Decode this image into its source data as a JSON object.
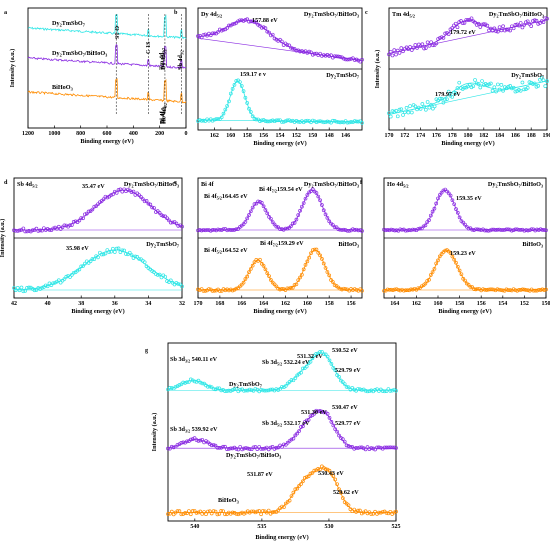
{
  "chart_data": [
    {
      "id": "a",
      "type": "line",
      "panel_label": "a",
      "xlabel": "Binding energy (eV)",
      "ylabel": "Intensity (a.u.)",
      "xlim": [
        1200,
        0
      ],
      "reversed": true,
      "xticks": [
        1200,
        1000,
        800,
        600,
        400,
        200,
        0
      ],
      "annotations": [
        "O 1S",
        "C 1S",
        "Tm 4d5/2",
        "Dy 4d5/2",
        "Sb 4d5/2",
        "Bi 4f7/2",
        "Bi 4f5/2",
        "Ho 4d5/2"
      ],
      "series": [
        {
          "name": "Dy2TmSbO7",
          "color": "#2ee6e6"
        },
        {
          "name": "Dy2TmSbO7/BiHoO3",
          "color": "#8a2be2"
        },
        {
          "name": "BiHoO3",
          "color": "#ff8c00"
        }
      ]
    },
    {
      "id": "b",
      "type": "line",
      "panel_label": "b",
      "title": "Dy 4d5/2",
      "xlabel": "Binding energy (eV)",
      "ylabel": "",
      "xlim": [
        164,
        144
      ],
      "xticks": [
        162,
        160,
        158,
        156,
        154,
        152,
        150,
        148,
        146
      ],
      "subplots": [
        {
          "name": "Dy2TmSbO7/BiHoO3",
          "color": "#8a2be2",
          "peak_label": "157.88 eV",
          "peak": 157.88
        },
        {
          "name": "Dy2TmSbO7",
          "color": "#2ee6e6",
          "peak_label": "159.17 e v",
          "peak": 159.17
        }
      ]
    },
    {
      "id": "c",
      "type": "line",
      "panel_label": "c",
      "title": "Tm 4d5/2",
      "xlabel": "Binding energy (eV)",
      "ylabel": "Intensity (a.u.)",
      "xlim": [
        170,
        190
      ],
      "xticks": [
        170,
        172,
        174,
        176,
        178,
        180,
        182,
        184,
        186,
        188,
        190
      ],
      "subplots": [
        {
          "name": "Dy2TmSbO7/BiHoO3",
          "color": "#8a2be2",
          "peak_label": "179.72 eV",
          "peak": 179.72
        },
        {
          "name": "Dy2TmSbO7",
          "color": "#2ee6e6",
          "peak_label": "179.97 eV",
          "peak": 179.97
        }
      ]
    },
    {
      "id": "d",
      "type": "line",
      "panel_label": "d",
      "title": "Sb 4d5/2",
      "xlabel": "Binding energy (eV)",
      "ylabel": "Intensity (a.u.)",
      "xlim": [
        42,
        32
      ],
      "xticks": [
        42,
        40,
        38,
        36,
        34,
        32
      ],
      "subplots": [
        {
          "name": "Dy2TmSbO7/BiHoO3",
          "color": "#8a2be2",
          "peak_label": "35.47 eV",
          "peak": 35.47
        },
        {
          "name": "Dy2TmSbO7",
          "color": "#2ee6e6",
          "peak_label": "35.98 eV",
          "peak": 35.98
        }
      ]
    },
    {
      "id": "e",
      "type": "line",
      "panel_label": "e",
      "title": "Bi 4f",
      "xlabel": "Binding energy (eV)",
      "ylabel": "",
      "xlim": [
        170,
        155
      ],
      "xticks": [
        170,
        168,
        166,
        164,
        162,
        160,
        158,
        156
      ],
      "subplots": [
        {
          "name": "Dy2TmSbO7/BiHoO3",
          "color": "#8a2be2",
          "peak_labels": [
            "Bi 4f5/2164.45 eV",
            "Bi 4f7/2159.54 eV"
          ],
          "peaks": [
            164.45,
            159.54
          ]
        },
        {
          "name": "BiHoO3",
          "color": "#ff8c00",
          "peak_labels": [
            "Bi 4f5/2164.52 eV",
            "Bi 4f7/2159.29 eV"
          ],
          "peaks": [
            164.52,
            159.29
          ]
        }
      ]
    },
    {
      "id": "f",
      "type": "line",
      "panel_label": "f",
      "title": "Ho 4d5/2",
      "xlabel": "Binding energy (eV)",
      "ylabel": "",
      "xlim": [
        165,
        150
      ],
      "xticks": [
        164,
        162,
        160,
        158,
        156,
        154,
        152,
        150
      ],
      "subplots": [
        {
          "name": "Dy2TmSbO7/BiHoO3",
          "color": "#8a2be2",
          "peak_label": "159.35 eV",
          "peak": 159.35
        },
        {
          "name": "BiHoO3",
          "color": "#ff8c00",
          "peak_label": "159.23 eV",
          "peak": 159.23
        }
      ]
    },
    {
      "id": "g",
      "type": "line",
      "panel_label": "g",
      "xlabel": "Binding energy (eV)",
      "ylabel": "Intensity (a.u.)",
      "xlim": [
        542,
        525
      ],
      "xticks": [
        540,
        535,
        530,
        525
      ],
      "subplots": [
        {
          "name": "Dy2TmSbO7",
          "color": "#2ee6e6",
          "peak_labels": [
            "Sb 3d3/2 540.11 eV",
            "531.32 eV",
            "Sb 3d5/2 532.24 eV",
            "530.52 eV",
            "529.79 eV"
          ],
          "peaks": [
            540.11,
            532.24,
            531.32,
            530.52,
            529.79
          ]
        },
        {
          "name": "Dy2TmSbO7/BiHoO3",
          "color": "#8a2be2",
          "peak_labels": [
            "Sb 3d3/2 539.92 eV",
            "531.30 eV",
            "Sb 3d5/2 532.17 eV",
            "530.47 eV",
            "529.77 eV"
          ],
          "peaks": [
            539.92,
            532.17,
            531.3,
            530.47,
            529.77
          ]
        },
        {
          "name": "BiHoO3",
          "color": "#ff8c00",
          "peak_labels": [
            "531.87 eV",
            "530.43 eV",
            "529.62 eV"
          ],
          "peaks": [
            531.87,
            530.43,
            529.62
          ]
        }
      ]
    }
  ]
}
